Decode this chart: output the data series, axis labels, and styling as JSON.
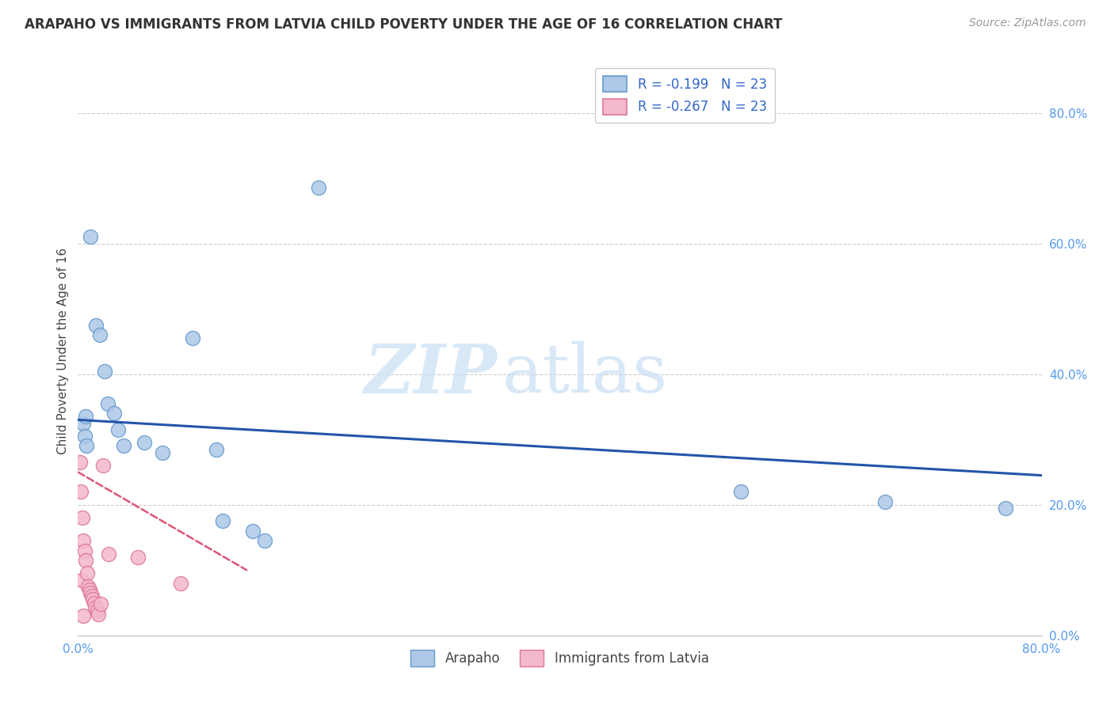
{
  "title": "ARAPAHO VS IMMIGRANTS FROM LATVIA CHILD POVERTY UNDER THE AGE OF 16 CORRELATION CHART",
  "source": "Source: ZipAtlas.com",
  "ylabel": "Child Poverty Under the Age of 16",
  "ytick_labels": [
    "0.0%",
    "20.0%",
    "40.0%",
    "60.0%",
    "80.0%"
  ],
  "ytick_values": [
    0,
    20,
    40,
    60,
    80
  ],
  "xlim": [
    0,
    80
  ],
  "ylim": [
    0,
    87
  ],
  "watermark_zip": "ZIP",
  "watermark_atlas": "atlas",
  "legend_arapaho_label": "R = -0.199   N = 23",
  "legend_latvia_label": "R = -0.267   N = 23",
  "legend_bottom_arapaho": "Arapaho",
  "legend_bottom_latvia": "Immigrants from Latvia",
  "arapaho_color": "#adc8e8",
  "arapaho_edge_color": "#6699cc",
  "arapaho_line_color": "#2255aa",
  "latvia_color": "#f4b8cc",
  "latvia_edge_color": "#dd7799",
  "latvia_line_color": "#dd5577",
  "arapaho_points": [
    [
      0.4,
      32.5
    ],
    [
      0.55,
      30.5
    ],
    [
      0.65,
      33.5
    ],
    [
      0.7,
      29.0
    ],
    [
      1.0,
      61.0
    ],
    [
      1.5,
      47.5
    ],
    [
      1.8,
      46.0
    ],
    [
      2.2,
      40.5
    ],
    [
      2.5,
      35.5
    ],
    [
      3.0,
      34.0
    ],
    [
      3.3,
      31.5
    ],
    [
      3.8,
      29.0
    ],
    [
      5.5,
      29.5
    ],
    [
      7.0,
      28.0
    ],
    [
      9.5,
      45.5
    ],
    [
      11.5,
      28.5
    ],
    [
      12.0,
      17.5
    ],
    [
      14.5,
      16.0
    ],
    [
      15.5,
      14.5
    ],
    [
      20.0,
      68.5
    ],
    [
      55.0,
      22.0
    ],
    [
      67.0,
      20.5
    ],
    [
      77.0,
      19.5
    ]
  ],
  "latvia_points": [
    [
      0.15,
      26.5
    ],
    [
      0.25,
      22.0
    ],
    [
      0.3,
      8.5
    ],
    [
      0.35,
      18.0
    ],
    [
      0.45,
      14.5
    ],
    [
      0.55,
      13.0
    ],
    [
      0.65,
      11.5
    ],
    [
      0.75,
      9.5
    ],
    [
      0.85,
      7.5
    ],
    [
      0.95,
      7.0
    ],
    [
      1.05,
      6.5
    ],
    [
      1.15,
      6.0
    ],
    [
      1.25,
      5.5
    ],
    [
      1.35,
      5.0
    ],
    [
      1.45,
      4.2
    ],
    [
      1.6,
      3.8
    ],
    [
      1.7,
      3.2
    ],
    [
      1.85,
      4.8
    ],
    [
      2.05,
      26.0
    ],
    [
      2.55,
      12.5
    ],
    [
      5.0,
      12.0
    ],
    [
      8.5,
      8.0
    ],
    [
      0.4,
      3.0
    ]
  ],
  "arapaho_trendline_y0": 33.0,
  "arapaho_trendline_y80": 24.5,
  "latvia_trendline_y0": 25.0,
  "latvia_trendline_y14": 10.0
}
